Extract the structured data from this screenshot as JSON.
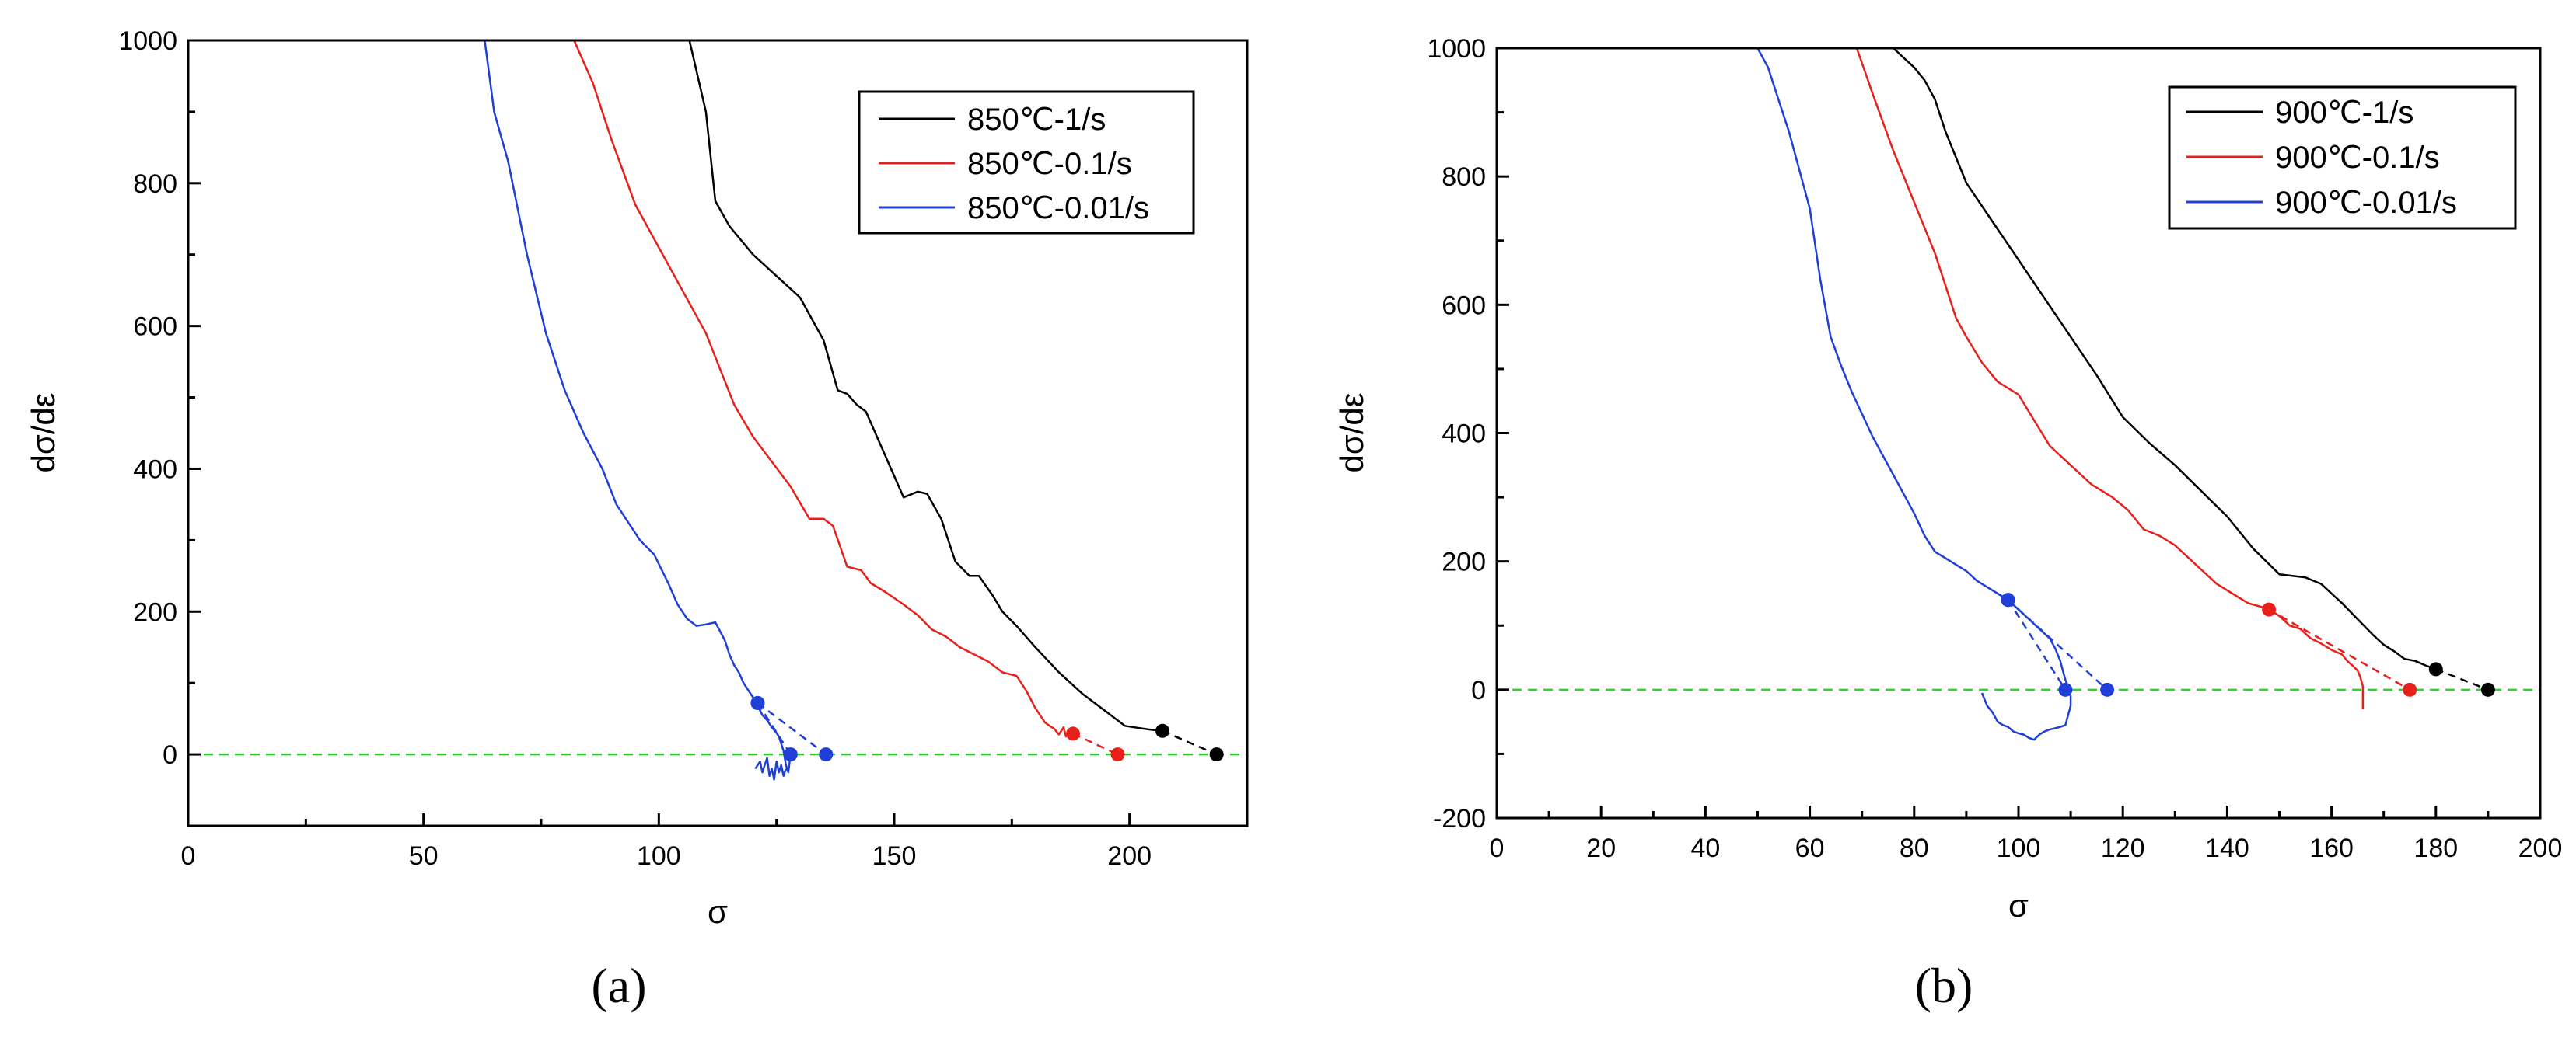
{
  "colors": {
    "black": "#000000",
    "red": "#e8201c",
    "blue": "#1f3fd6",
    "zero_line": "#33cc33"
  },
  "chart_data": [
    {
      "type": "line",
      "panel_label": "(a)",
      "xlabel": "σ",
      "ylabel": "dσ/dε",
      "xlim": [
        0,
        225
      ],
      "ylim": [
        -100,
        1000
      ],
      "xticks": [
        0,
        50,
        100,
        150,
        200
      ],
      "yticks": [
        0,
        200,
        400,
        600,
        800,
        1000
      ],
      "zero_line": true,
      "legend_position": "top-right",
      "series": [
        {
          "name": "850℃-1/s",
          "color": "#000000",
          "x": [
            106.5,
            110,
            112,
            115,
            120,
            125,
            130,
            135,
            138,
            140,
            142,
            144,
            148,
            152,
            155,
            157,
            160,
            163,
            166,
            168,
            171,
            173,
            176,
            180,
            185,
            190,
            193,
            196,
            199,
            201,
            204,
            207
          ],
          "y": [
            1000,
            900,
            775,
            740,
            700,
            670,
            640,
            580,
            510,
            505,
            490,
            480,
            420,
            360,
            368,
            365,
            330,
            270,
            250,
            250,
            222,
            200,
            180,
            150,
            115,
            85,
            70,
            55,
            40,
            38,
            35,
            33
          ]
        },
        {
          "name": "850℃-0.1/s",
          "color": "#e8201c",
          "x": [
            82,
            86,
            90,
            95,
            100,
            105,
            110,
            113,
            116,
            120,
            124,
            128,
            132,
            135,
            137,
            140,
            143,
            145,
            148,
            152,
            155,
            158,
            161,
            164,
            167,
            170,
            173,
            176,
            178,
            180,
            182,
            183,
            184,
            185,
            186,
            186.5,
            187,
            187.5
          ],
          "y": [
            1000,
            940,
            860,
            770,
            710,
            650,
            590,
            540,
            490,
            445,
            410,
            375,
            330,
            330,
            320,
            263,
            258,
            240,
            228,
            210,
            195,
            175,
            165,
            150,
            140,
            130,
            115,
            110,
            90,
            65,
            45,
            40,
            36,
            28,
            38,
            25,
            34,
            30
          ]
        },
        {
          "name": "850℃-0.01/s",
          "color": "#1f3fd6",
          "x": [
            63,
            65,
            68,
            72,
            76,
            80,
            84,
            88,
            91,
            94,
            96,
            99,
            102,
            104,
            106,
            108,
            110,
            112,
            114,
            115,
            116,
            117,
            118,
            119,
            119.5,
            120,
            120.5,
            121
          ],
          "y": [
            1000,
            900,
            830,
            700,
            590,
            510,
            450,
            400,
            350,
            320,
            300,
            280,
            240,
            210,
            190,
            180,
            182,
            185,
            160,
            140,
            125,
            115,
            100,
            90,
            85,
            80,
            75,
            72
          ]
        },
        {
          "name": "",
          "color": "#1f3fd6",
          "x": [
            121,
            122,
            123,
            124,
            125,
            125.5,
            126,
            126.5,
            127,
            127.5,
            128
          ],
          "y": [
            68,
            55,
            48,
            38,
            30,
            25,
            15,
            5,
            -15,
            -25,
            0
          ]
        },
        {
          "name": "",
          "color": "#1f3fd6",
          "x": [
            120.5,
            121.5,
            122,
            122.5,
            123,
            123.5,
            124,
            124.5,
            125,
            125.5,
            126,
            126.5,
            127
          ],
          "y": [
            -20,
            -10,
            -25,
            -15,
            -5,
            -30,
            -20,
            -35,
            -10,
            -25,
            -15,
            -30,
            -20
          ]
        }
      ],
      "extrapolations": [
        {
          "color": "#000000",
          "from": [
            207,
            33
          ],
          "to": [
            218.5,
            0
          ]
        },
        {
          "color": "#e8201c",
          "from": [
            188,
            29
          ],
          "to": [
            197.5,
            0
          ]
        },
        {
          "color": "#1f3fd6",
          "from": [
            121,
            72
          ],
          "to": [
            135.5,
            0
          ]
        },
        {
          "color": "#1f3fd6",
          "from": [
            121,
            72
          ],
          "to": [
            128,
            0
          ]
        }
      ]
    },
    {
      "type": "line",
      "panel_label": "(b)",
      "xlabel": "σ",
      "ylabel": "dσ/dε",
      "xlim": [
        0,
        200
      ],
      "ylim": [
        -200,
        1000
      ],
      "xticks": [
        0,
        20,
        40,
        60,
        80,
        100,
        120,
        140,
        160,
        180,
        200
      ],
      "yticks": [
        -200,
        0,
        200,
        400,
        600,
        800,
        1000
      ],
      "zero_line": true,
      "legend_position": "top-right",
      "series": [
        {
          "name": "900℃-1/s",
          "color": "#000000",
          "x": [
            76,
            78,
            80,
            82,
            84,
            86,
            88,
            90,
            95,
            100,
            105,
            110,
            115,
            120,
            125,
            130,
            135,
            140,
            145,
            150,
            155,
            158,
            160,
            162,
            165,
            168,
            170,
            172,
            174,
            176,
            178,
            180
          ],
          "y": [
            1000,
            985,
            970,
            950,
            920,
            870,
            830,
            790,
            730,
            670,
            610,
            550,
            490,
            425,
            385,
            350,
            310,
            270,
            220,
            180,
            175,
            165,
            150,
            135,
            110,
            85,
            70,
            60,
            48,
            45,
            38,
            32
          ]
        },
        {
          "name": "900℃-0.1/s",
          "color": "#e8201c",
          "x": [
            69,
            72,
            76,
            80,
            84,
            86,
            88,
            90,
            93,
            96,
            100,
            103,
            106,
            110,
            114,
            118,
            121,
            124,
            127,
            130,
            134,
            138,
            141,
            144,
            147,
            148
          ],
          "y": [
            1000,
            930,
            840,
            760,
            680,
            630,
            580,
            550,
            510,
            480,
            460,
            420,
            380,
            350,
            320,
            300,
            280,
            250,
            240,
            225,
            195,
            165,
            150,
            135,
            128,
            125
          ]
        },
        {
          "name": "",
          "color": "#e8201c",
          "x": [
            148,
            150,
            152,
            154,
            156,
            158,
            160,
            162,
            163,
            164,
            165,
            165.5,
            166,
            166
          ],
          "y": [
            125,
            115,
            100,
            95,
            80,
            72,
            62,
            55,
            45,
            38,
            30,
            20,
            5,
            -30
          ]
        },
        {
          "name": "900℃-0.01/s",
          "color": "#1f3fd6",
          "x": [
            50,
            52,
            54,
            56,
            58,
            60,
            62,
            64,
            66,
            68,
            70,
            72,
            74,
            76,
            78,
            80,
            82,
            84,
            86,
            88,
            90,
            92,
            94,
            96,
            98
          ],
          "y": [
            1000,
            970,
            920,
            870,
            810,
            750,
            640,
            550,
            505,
            465,
            430,
            395,
            365,
            335,
            305,
            275,
            240,
            215,
            205,
            195,
            185,
            170,
            160,
            150,
            140
          ]
        },
        {
          "name": "",
          "color": "#1f3fd6",
          "x": [
            98,
            100,
            102,
            104,
            106,
            107,
            108,
            108.5,
            109,
            109.5,
            110,
            110,
            109.5,
            109,
            108,
            107,
            106,
            105,
            104,
            103,
            102,
            101,
            100,
            99,
            98,
            97,
            96,
            95,
            94,
            93
          ],
          "y": [
            140,
            125,
            110,
            95,
            80,
            65,
            45,
            30,
            15,
            5,
            -10,
            -25,
            -40,
            -55,
            -58,
            -60,
            -62,
            -65,
            -70,
            -78,
            -75,
            -70,
            -68,
            -65,
            -58,
            -55,
            -50,
            -35,
            -25,
            -5
          ]
        }
      ],
      "extrapolations": [
        {
          "color": "#000000",
          "from": [
            180,
            32
          ],
          "to": [
            190,
            0
          ]
        },
        {
          "color": "#e8201c",
          "from": [
            148,
            125
          ],
          "to": [
            175,
            0
          ]
        },
        {
          "color": "#1f3fd6",
          "from": [
            98,
            140
          ],
          "to": [
            117,
            0
          ]
        },
        {
          "color": "#1f3fd6",
          "from": [
            98,
            140
          ],
          "to": [
            109,
            0
          ]
        }
      ]
    }
  ]
}
